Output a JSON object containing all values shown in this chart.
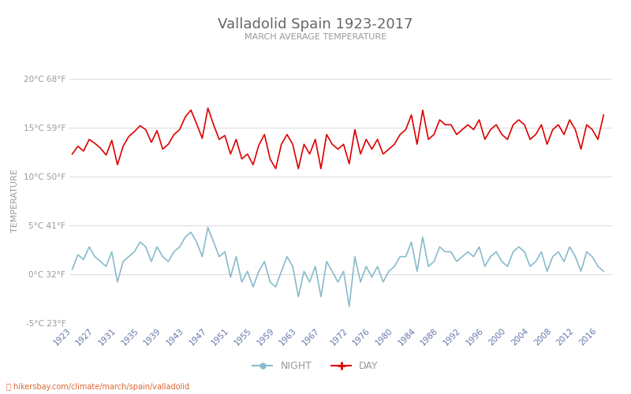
{
  "title": "Valladolid Spain 1923-2017",
  "subtitle": "MARCH AVERAGE TEMPERATURE",
  "ylabel": "TEMPERATURE",
  "ylabel_color": "#999999",
  "title_color": "#666666",
  "subtitle_color": "#999999",
  "background_color": "#ffffff",
  "grid_color": "#dddddd",
  "ylim": [
    -5,
    20
  ],
  "yticks_c": [
    -5,
    0,
    5,
    10,
    15,
    20
  ],
  "ytick_labels": [
    "-5°C 23°F",
    "0°C 32°F",
    "5°C 41°F",
    "10°C 50°F",
    "15°C 59°F",
    "20°C 68°F"
  ],
  "day_color": "#dd0000",
  "night_color": "#88bbcc",
  "legend_night_label": "NIGHT",
  "legend_day_label": "DAY",
  "watermark": "hikersbay.com/climate/march/spain/valladolid",
  "years": [
    1923,
    1924,
    1925,
    1926,
    1927,
    1928,
    1929,
    1930,
    1931,
    1932,
    1933,
    1934,
    1935,
    1936,
    1937,
    1938,
    1939,
    1940,
    1941,
    1942,
    1943,
    1944,
    1945,
    1946,
    1947,
    1948,
    1949,
    1950,
    1951,
    1952,
    1953,
    1954,
    1955,
    1956,
    1957,
    1958,
    1959,
    1960,
    1961,
    1962,
    1963,
    1964,
    1965,
    1966,
    1967,
    1968,
    1969,
    1970,
    1971,
    1972,
    1973,
    1974,
    1975,
    1976,
    1977,
    1978,
    1979,
    1980,
    1981,
    1982,
    1983,
    1984,
    1985,
    1986,
    1987,
    1988,
    1989,
    1990,
    1991,
    1992,
    1993,
    1994,
    1995,
    1996,
    1997,
    1998,
    1999,
    2000,
    2001,
    2002,
    2003,
    2004,
    2005,
    2006,
    2007,
    2008,
    2009,
    2010,
    2011,
    2012,
    2013,
    2014,
    2015,
    2016,
    2017
  ],
  "day_temps": [
    12.3,
    13.1,
    12.6,
    13.8,
    13.4,
    12.9,
    12.2,
    13.7,
    11.2,
    13.1,
    14.1,
    14.6,
    15.2,
    14.8,
    13.5,
    14.7,
    12.8,
    13.3,
    14.3,
    14.8,
    16.1,
    16.8,
    15.4,
    13.9,
    17.0,
    15.3,
    13.8,
    14.2,
    12.3,
    13.8,
    11.8,
    12.3,
    11.2,
    13.2,
    14.3,
    11.8,
    10.8,
    13.3,
    14.3,
    13.3,
    10.8,
    13.3,
    12.3,
    13.8,
    10.8,
    14.3,
    13.3,
    12.8,
    13.3,
    11.3,
    14.8,
    12.3,
    13.8,
    12.8,
    13.8,
    12.3,
    12.8,
    13.3,
    14.3,
    14.8,
    16.3,
    13.3,
    16.8,
    13.8,
    14.3,
    15.8,
    15.3,
    15.3,
    14.3,
    14.8,
    15.3,
    14.8,
    15.8,
    13.8,
    14.8,
    15.3,
    14.3,
    13.8,
    15.3,
    15.8,
    15.3,
    13.8,
    14.3,
    15.3,
    13.3,
    14.8,
    15.3,
    14.3,
    15.8,
    14.8,
    12.8,
    15.3,
    14.8,
    13.8,
    16.3
  ],
  "night_temps": [
    0.5,
    2.0,
    1.5,
    2.8,
    1.8,
    1.3,
    0.8,
    2.3,
    -0.8,
    1.3,
    1.8,
    2.3,
    3.3,
    2.8,
    1.3,
    2.8,
    1.8,
    1.3,
    2.3,
    2.8,
    3.8,
    4.3,
    3.3,
    1.8,
    4.8,
    3.3,
    1.8,
    2.3,
    -0.3,
    1.8,
    -0.8,
    0.3,
    -1.3,
    0.3,
    1.3,
    -0.8,
    -1.3,
    0.3,
    1.8,
    0.8,
    -2.3,
    0.3,
    -0.8,
    0.8,
    -2.3,
    1.3,
    0.3,
    -0.8,
    0.3,
    -3.3,
    1.8,
    -0.8,
    0.8,
    -0.3,
    0.8,
    -0.8,
    0.3,
    0.8,
    1.8,
    1.8,
    3.3,
    0.3,
    3.8,
    0.8,
    1.3,
    2.8,
    2.3,
    2.3,
    1.3,
    1.8,
    2.3,
    1.8,
    2.8,
    0.8,
    1.8,
    2.3,
    1.3,
    0.8,
    2.3,
    2.8,
    2.3,
    0.8,
    1.3,
    2.3,
    0.3,
    1.8,
    2.3,
    1.3,
    2.8,
    1.8,
    0.3,
    2.3,
    1.8,
    0.8,
    0.3
  ],
  "xtick_years": [
    1923,
    1927,
    1931,
    1935,
    1939,
    1943,
    1947,
    1951,
    1955,
    1959,
    1963,
    1967,
    1972,
    1976,
    1980,
    1984,
    1988,
    1992,
    1996,
    2000,
    2004,
    2008,
    2012,
    2016
  ]
}
